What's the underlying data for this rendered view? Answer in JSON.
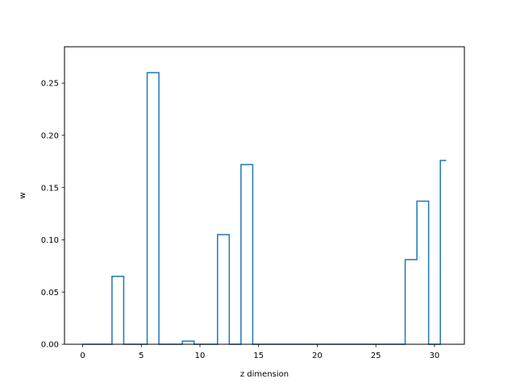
{
  "chart_data": {
    "type": "line",
    "drawstyle": "steps-mid",
    "xlabel": "z dimension",
    "ylabel": "w",
    "xlim": [
      -1.55,
      32.55
    ],
    "ylim": [
      0,
      0.2848
    ],
    "xticks": [
      0,
      5,
      10,
      15,
      20,
      25,
      30
    ],
    "xtick_labels": [
      "0",
      "5",
      "10",
      "15",
      "20",
      "25",
      "30"
    ],
    "yticks": [
      0.0,
      0.05,
      0.1,
      0.15,
      0.2,
      0.25
    ],
    "ytick_labels": [
      "0.00",
      "0.05",
      "0.10",
      "0.15",
      "0.20",
      "0.25"
    ],
    "grid": false,
    "line_color": "#1f77b4",
    "x": [
      0,
      1,
      2,
      3,
      4,
      5,
      6,
      7,
      8,
      9,
      10,
      11,
      12,
      13,
      14,
      15,
      16,
      17,
      18,
      19,
      20,
      21,
      22,
      23,
      24,
      25,
      26,
      27,
      28,
      29,
      30,
      31
    ],
    "values": [
      0,
      0,
      0,
      0.065,
      0,
      0,
      0.26,
      0,
      0,
      0.003,
      0,
      0,
      0.105,
      0,
      0.172,
      0,
      0,
      0,
      0,
      0,
      0,
      0,
      0,
      0,
      0,
      0,
      0,
      0,
      0.081,
      0.137,
      0,
      0.176
    ]
  }
}
